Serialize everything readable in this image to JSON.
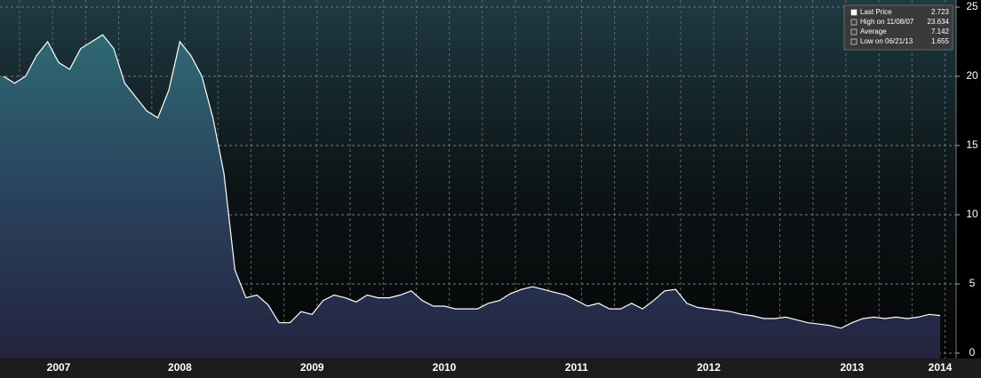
{
  "chart_data": {
    "type": "area-line",
    "categories": [
      null,
      null,
      null,
      null,
      null,
      "2007",
      null,
      null,
      null,
      null,
      null,
      null,
      null,
      null,
      null,
      null,
      "2008",
      null,
      null,
      null,
      null,
      null,
      null,
      null,
      null,
      null,
      null,
      null,
      "2009",
      null,
      null,
      null,
      null,
      null,
      null,
      null,
      null,
      null,
      null,
      null,
      "2010",
      null,
      null,
      null,
      null,
      null,
      null,
      null,
      null,
      null,
      null,
      null,
      "2011",
      null,
      null,
      null,
      null,
      null,
      null,
      null,
      null,
      null,
      null,
      null,
      "2012",
      null,
      null,
      null,
      null,
      null,
      null,
      null,
      null,
      null,
      null,
      null,
      null,
      "2013",
      null,
      null,
      null,
      null,
      null,
      null,
      null,
      "2014"
    ],
    "values": [
      20,
      19.5,
      20,
      21.5,
      22.5,
      21,
      20.5,
      22,
      22.5,
      23,
      22,
      19.5,
      18.5,
      17.5,
      17,
      19,
      22.5,
      21.5,
      20,
      17,
      13,
      6,
      4,
      4.2,
      3.5,
      2.2,
      2.2,
      3,
      2.8,
      3.8,
      4.2,
      4,
      3.7,
      4.2,
      4,
      4,
      4.2,
      4.5,
      3.8,
      3.4,
      3.4,
      3.2,
      3.2,
      3.2,
      3.6,
      3.8,
      4.3,
      4.6,
      4.8,
      4.6,
      4.4,
      4.2,
      3.8,
      3.4,
      3.6,
      3.2,
      3.2,
      3.6,
      3.2,
      3.8,
      4.5,
      4.6,
      3.6,
      3.3,
      3.2,
      3.1,
      3,
      2.8,
      2.7,
      2.5,
      2.5,
      2.6,
      2.4,
      2.2,
      2.1,
      2,
      1.8,
      2.2,
      2.5,
      2.6,
      2.5,
      2.6,
      2.5,
      2.6,
      2.8,
      2.72
    ],
    "color": "#ffffff",
    "ylim": [
      0,
      25
    ],
    "yticks": [
      0,
      5,
      10,
      15,
      20,
      25
    ],
    "grid": true,
    "legend": [
      {
        "label": "Last Price",
        "value": 2.723
      },
      {
        "label": "High on 11/08/07",
        "value": 23.634
      },
      {
        "label": "Average",
        "value": 7.142
      },
      {
        "label": "Low on 06/21/13",
        "value": 1.655
      }
    ]
  }
}
